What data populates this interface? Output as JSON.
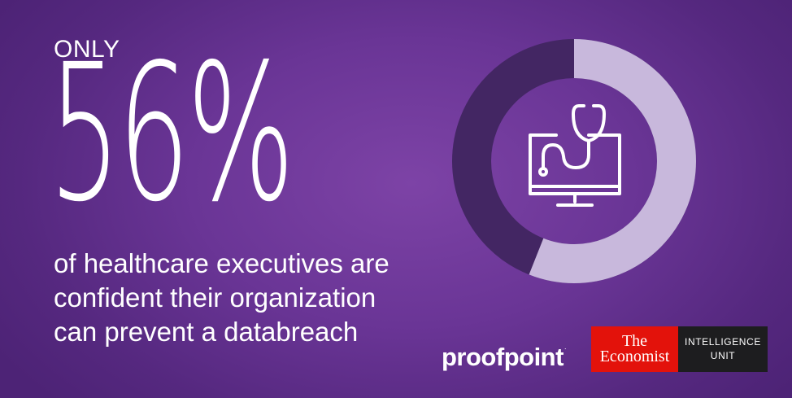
{
  "headline": {
    "prefix": "ONLY",
    "stat": "56%",
    "caption_lines": [
      "of healthcare executives are",
      "confident their organization",
      "can prevent a databreach"
    ]
  },
  "donut": {
    "percent": 56,
    "filled_color": "#c8b8dc",
    "remainder_color": "#432663",
    "icon": "monitor-stethoscope-icon"
  },
  "logos": {
    "proofpoint": {
      "text": "proofpoint",
      "mark": "."
    },
    "economist": {
      "name_line1": "The",
      "name_line2": "Economist",
      "unit_line1": "INTELLIGENCE",
      "unit_line2": "UNIT",
      "red": "#e3120b"
    }
  },
  "colors": {
    "background": "#6a3596",
    "text": "#ffffff"
  }
}
